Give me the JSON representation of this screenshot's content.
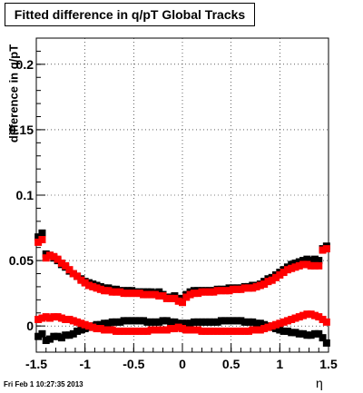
{
  "chart_data": {
    "type": "scatter",
    "title": "Fitted difference in q/pT  Global Tracks",
    "xlabel": "η",
    "ylabel": "difference in q/pT",
    "timestamp": "Fri Feb  1 10:27:35 2013",
    "xlim": [
      -1.5,
      1.5
    ],
    "ylim": [
      -0.02,
      0.22
    ],
    "grid": true,
    "xticks": [
      -1.5,
      -1,
      -0.5,
      0,
      0.5,
      1,
      1.5
    ],
    "xtick_labels": [
      "-1.5",
      "-1",
      "-0.5",
      "0",
      "0.5",
      "1",
      "1.5"
    ],
    "yticks": [
      0,
      0.05,
      0.1,
      0.15,
      0.2
    ],
    "ytick_labels": [
      "0",
      "0.05",
      "0.1",
      "0.15",
      "0.2"
    ],
    "series": [
      {
        "color": "#000000",
        "x": [
          -1.48,
          -1.44,
          -1.4,
          -1.36,
          -1.32,
          -1.28,
          -1.24,
          -1.2,
          -1.16,
          -1.12,
          -1.08,
          -1.04,
          -1.0,
          -0.96,
          -0.92,
          -0.88,
          -0.84,
          -0.8,
          -0.76,
          -0.72,
          -0.68,
          -0.64,
          -0.6,
          -0.56,
          -0.52,
          -0.48,
          -0.44,
          -0.4,
          -0.36,
          -0.32,
          -0.28,
          -0.24,
          -0.2,
          -0.16,
          -0.12,
          -0.08,
          -0.04,
          0.0,
          0.04,
          0.08,
          0.12,
          0.16,
          0.2,
          0.24,
          0.28,
          0.32,
          0.36,
          0.4,
          0.44,
          0.48,
          0.52,
          0.56,
          0.6,
          0.64,
          0.68,
          0.72,
          0.76,
          0.8,
          0.84,
          0.88,
          0.92,
          0.96,
          1.0,
          1.04,
          1.08,
          1.12,
          1.16,
          1.2,
          1.24,
          1.28,
          1.32,
          1.36,
          1.4,
          1.44,
          1.48
        ],
        "y": [
          0.068,
          0.071,
          0.055,
          0.054,
          0.052,
          0.05,
          0.047,
          0.045,
          0.042,
          0.04,
          0.038,
          0.036,
          0.034,
          0.033,
          0.032,
          0.031,
          0.03,
          0.029,
          0.029,
          0.028,
          0.028,
          0.027,
          0.027,
          0.027,
          0.027,
          0.026,
          0.026,
          0.026,
          0.026,
          0.026,
          0.025,
          0.026,
          0.024,
          0.022,
          0.022,
          0.023,
          0.021,
          0.021,
          0.024,
          0.026,
          0.027,
          0.027,
          0.027,
          0.027,
          0.027,
          0.027,
          0.028,
          0.028,
          0.028,
          0.029,
          0.029,
          0.029,
          0.029,
          0.03,
          0.03,
          0.031,
          0.031,
          0.032,
          0.034,
          0.036,
          0.037,
          0.039,
          0.041,
          0.043,
          0.045,
          0.047,
          0.048,
          0.049,
          0.05,
          0.051,
          0.05,
          0.051,
          0.05,
          0.059,
          0.061
        ]
      },
      {
        "color": "#ff0000",
        "x": [
          -1.48,
          -1.44,
          -1.4,
          -1.36,
          -1.32,
          -1.28,
          -1.24,
          -1.2,
          -1.16,
          -1.12,
          -1.08,
          -1.04,
          -1.0,
          -0.96,
          -0.92,
          -0.88,
          -0.84,
          -0.8,
          -0.76,
          -0.72,
          -0.68,
          -0.64,
          -0.6,
          -0.56,
          -0.52,
          -0.48,
          -0.44,
          -0.4,
          -0.36,
          -0.32,
          -0.28,
          -0.24,
          -0.2,
          -0.16,
          -0.12,
          -0.08,
          -0.04,
          0.0,
          0.04,
          0.08,
          0.12,
          0.16,
          0.2,
          0.24,
          0.28,
          0.32,
          0.36,
          0.4,
          0.44,
          0.48,
          0.52,
          0.56,
          0.6,
          0.64,
          0.68,
          0.72,
          0.76,
          0.8,
          0.84,
          0.88,
          0.92,
          0.96,
          1.0,
          1.04,
          1.08,
          1.12,
          1.16,
          1.2,
          1.24,
          1.28,
          1.32,
          1.36,
          1.4,
          1.44,
          1.48
        ],
        "y": [
          0.064,
          0.066,
          0.052,
          0.054,
          0.053,
          0.051,
          0.048,
          0.046,
          0.043,
          0.04,
          0.038,
          0.035,
          0.033,
          0.031,
          0.03,
          0.029,
          0.028,
          0.027,
          0.027,
          0.026,
          0.026,
          0.026,
          0.025,
          0.025,
          0.025,
          0.025,
          0.025,
          0.024,
          0.024,
          0.024,
          0.024,
          0.023,
          0.023,
          0.021,
          0.021,
          0.021,
          0.019,
          0.018,
          0.022,
          0.024,
          0.025,
          0.025,
          0.026,
          0.026,
          0.026,
          0.026,
          0.027,
          0.027,
          0.027,
          0.027,
          0.028,
          0.028,
          0.028,
          0.029,
          0.029,
          0.029,
          0.03,
          0.031,
          0.032,
          0.034,
          0.035,
          0.037,
          0.039,
          0.041,
          0.043,
          0.044,
          0.045,
          0.046,
          0.047,
          0.047,
          0.046,
          0.046,
          0.046,
          0.058,
          0.059
        ]
      },
      {
        "color": "#000000",
        "x": [
          -1.48,
          -1.44,
          -1.4,
          -1.36,
          -1.32,
          -1.28,
          -1.24,
          -1.2,
          -1.16,
          -1.12,
          -1.08,
          -1.04,
          -1.0,
          -0.96,
          -0.92,
          -0.88,
          -0.84,
          -0.8,
          -0.76,
          -0.72,
          -0.68,
          -0.64,
          -0.6,
          -0.56,
          -0.52,
          -0.48,
          -0.44,
          -0.4,
          -0.36,
          -0.32,
          -0.28,
          -0.24,
          -0.2,
          -0.16,
          -0.12,
          -0.08,
          -0.04,
          0.0,
          0.04,
          0.08,
          0.12,
          0.16,
          0.2,
          0.24,
          0.28,
          0.32,
          0.36,
          0.4,
          0.44,
          0.48,
          0.52,
          0.56,
          0.6,
          0.64,
          0.68,
          0.72,
          0.76,
          0.8,
          0.84,
          0.88,
          0.92,
          0.96,
          1.0,
          1.04,
          1.08,
          1.12,
          1.16,
          1.2,
          1.24,
          1.28,
          1.32,
          1.36,
          1.4,
          1.44,
          1.48
        ],
        "y": [
          -0.008,
          -0.006,
          -0.011,
          -0.01,
          -0.008,
          -0.008,
          -0.009,
          -0.007,
          -0.007,
          -0.006,
          -0.004,
          -0.003,
          -0.002,
          -0.001,
          0.0,
          0.001,
          0.001,
          0.002,
          0.002,
          0.003,
          0.003,
          0.003,
          0.004,
          0.004,
          0.004,
          0.004,
          0.004,
          0.004,
          0.003,
          0.003,
          0.003,
          0.003,
          0.004,
          0.004,
          0.003,
          0.003,
          0.002,
          0.002,
          0.002,
          0.002,
          0.003,
          0.003,
          0.003,
          0.003,
          0.003,
          0.003,
          0.003,
          0.004,
          0.004,
          0.004,
          0.004,
          0.004,
          0.004,
          0.003,
          0.003,
          0.003,
          0.002,
          0.002,
          0.001,
          0.0,
          -0.001,
          -0.002,
          -0.003,
          -0.004,
          -0.004,
          -0.005,
          -0.005,
          -0.006,
          -0.006,
          -0.007,
          -0.007,
          -0.006,
          -0.006,
          -0.009,
          -0.013
        ]
      },
      {
        "color": "#ff0000",
        "x": [
          -1.48,
          -1.44,
          -1.4,
          -1.36,
          -1.32,
          -1.28,
          -1.24,
          -1.2,
          -1.16,
          -1.12,
          -1.08,
          -1.04,
          -1.0,
          -0.96,
          -0.92,
          -0.88,
          -0.84,
          -0.8,
          -0.76,
          -0.72,
          -0.68,
          -0.64,
          -0.6,
          -0.56,
          -0.52,
          -0.48,
          -0.44,
          -0.4,
          -0.36,
          -0.32,
          -0.28,
          -0.24,
          -0.2,
          -0.16,
          -0.12,
          -0.08,
          -0.04,
          0.0,
          0.04,
          0.08,
          0.12,
          0.16,
          0.2,
          0.24,
          0.28,
          0.32,
          0.36,
          0.4,
          0.44,
          0.48,
          0.52,
          0.56,
          0.6,
          0.64,
          0.68,
          0.72,
          0.76,
          0.8,
          0.84,
          0.88,
          0.92,
          0.96,
          1.0,
          1.04,
          1.08,
          1.12,
          1.16,
          1.2,
          1.24,
          1.28,
          1.32,
          1.36,
          1.4,
          1.44,
          1.48
        ],
        "y": [
          0.005,
          0.006,
          0.007,
          0.006,
          0.007,
          0.007,
          0.006,
          0.005,
          0.005,
          0.004,
          0.003,
          0.002,
          0.001,
          0.0,
          -0.001,
          -0.002,
          -0.002,
          -0.003,
          -0.003,
          -0.003,
          -0.004,
          -0.004,
          -0.004,
          -0.004,
          -0.004,
          -0.004,
          -0.004,
          -0.004,
          -0.004,
          -0.003,
          -0.003,
          -0.003,
          -0.003,
          -0.003,
          -0.002,
          -0.002,
          -0.001,
          -0.002,
          -0.003,
          -0.003,
          -0.003,
          -0.003,
          -0.004,
          -0.004,
          -0.004,
          -0.004,
          -0.004,
          -0.004,
          -0.004,
          -0.004,
          -0.004,
          -0.004,
          -0.004,
          -0.004,
          -0.004,
          -0.003,
          -0.003,
          -0.003,
          -0.002,
          -0.001,
          0.0,
          0.001,
          0.002,
          0.003,
          0.004,
          0.005,
          0.006,
          0.007,
          0.008,
          0.009,
          0.009,
          0.008,
          0.007,
          0.005,
          0.003
        ]
      }
    ]
  }
}
